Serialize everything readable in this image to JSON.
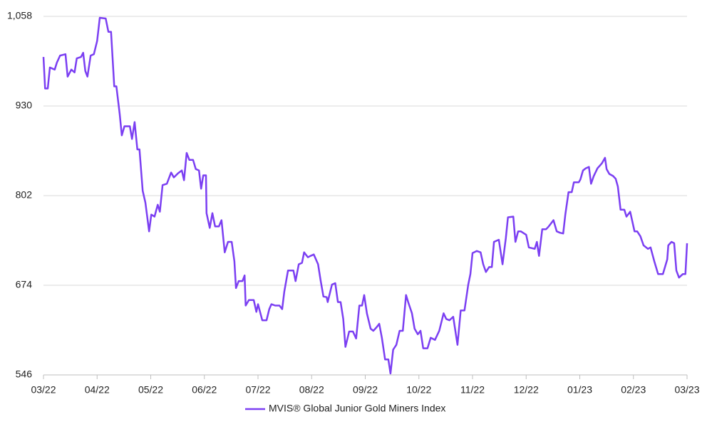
{
  "chart_data": {
    "type": "line",
    "x": [
      0,
      0.03,
      0.08,
      0.12,
      0.21,
      0.25,
      0.31,
      0.41,
      0.45,
      0.52,
      0.58,
      0.62,
      0.7,
      0.74,
      0.78,
      0.82,
      0.88,
      0.94,
      1.0,
      1.05,
      1.16,
      1.21,
      1.26,
      1.32,
      1.36,
      1.42,
      1.46,
      1.51,
      1.61,
      1.65,
      1.7,
      1.75,
      1.79,
      1.85,
      1.9,
      1.97,
      2.01,
      2.07,
      2.13,
      2.17,
      2.22,
      2.3,
      2.38,
      2.43,
      2.51,
      2.58,
      2.62,
      2.67,
      2.72,
      2.79,
      2.84,
      2.9,
      2.94,
      2.98,
      3.03,
      3.04,
      3.1,
      3.15,
      3.2,
      3.27,
      3.32,
      3.38,
      3.44,
      3.51,
      3.56,
      3.59,
      3.64,
      3.71,
      3.75,
      3.77,
      3.83,
      3.92,
      3.97,
      4.0,
      4.08,
      4.16,
      4.21,
      4.25,
      4.32,
      4.4,
      4.45,
      4.49,
      4.56,
      4.66,
      4.7,
      4.76,
      4.82,
      4.86,
      4.93,
      4.98,
      5.04,
      5.12,
      5.17,
      5.22,
      5.28,
      5.3,
      5.38,
      5.44,
      5.49,
      5.54,
      5.59,
      5.63,
      5.7,
      5.77,
      5.83,
      5.89,
      5.94,
      5.98,
      6.03,
      6.1,
      6.15,
      6.21,
      6.26,
      6.31,
      6.37,
      6.43,
      6.47,
      6.52,
      6.58,
      6.64,
      6.7,
      6.76,
      6.8,
      6.87,
      6.92,
      6.98,
      7.03,
      7.08,
      7.16,
      7.22,
      7.3,
      7.38,
      7.46,
      7.51,
      7.57,
      7.64,
      7.68,
      7.72,
      7.78,
      7.85,
      7.92,
      7.96,
      8.0,
      8.08,
      8.15,
      8.2,
      8.25,
      8.31,
      8.36,
      8.4,
      8.49,
      8.56,
      8.62,
      8.66,
      8.76,
      8.8,
      8.85,
      8.9,
      9.0,
      9.05,
      9.16,
      9.2,
      9.24,
      9.3,
      9.37,
      9.42,
      9.51,
      9.57,
      9.63,
      9.69,
      9.73,
      9.79,
      9.85,
      9.89,
      9.98,
      10.01,
      10.06,
      10.11,
      10.17,
      10.21,
      10.26,
      10.33,
      10.41,
      10.47,
      10.5,
      10.55,
      10.62,
      10.67,
      10.71,
      10.76,
      10.83,
      10.87,
      10.94,
      11.02,
      11.07,
      11.13,
      11.19,
      11.27,
      11.32,
      11.39,
      11.46,
      11.55,
      11.63,
      11.65,
      11.71,
      11.76,
      11.8,
      11.85,
      11.92,
      11.97,
      12.0
    ],
    "series": [
      {
        "name": "MVIS® Global Junior Gold Miners Index",
        "color": "#7b3ff2",
        "values": [
          1000,
          955,
          955,
          985,
          982,
          992,
          1002,
          1004,
          972,
          982,
          978,
          998,
          1000,
          1006,
          980,
          972,
          1002,
          1004,
          1023,
          1056,
          1055,
          1036,
          1036,
          958,
          958,
          919,
          888,
          901,
          901,
          883,
          907,
          868,
          868,
          809,
          792,
          751,
          775,
          772,
          789,
          779,
          817,
          819,
          835,
          828,
          834,
          838,
          824,
          863,
          853,
          853,
          840,
          838,
          812,
          831,
          831,
          777,
          756,
          777,
          758,
          758,
          767,
          721,
          736,
          736,
          708,
          670,
          680,
          680,
          688,
          645,
          653,
          653,
          636,
          647,
          624,
          624,
          640,
          647,
          645,
          645,
          640,
          665,
          695,
          695,
          680,
          704,
          706,
          721,
          714,
          716,
          718,
          704,
          680,
          658,
          657,
          650,
          675,
          677,
          650,
          650,
          626,
          586,
          608,
          608,
          598,
          645,
          645,
          660,
          634,
          612,
          609,
          614,
          619,
          599,
          568,
          568,
          548,
          582,
          589,
          609,
          609,
          660,
          650,
          634,
          612,
          604,
          609,
          584,
          584,
          599,
          596,
          609,
          634,
          626,
          624,
          629,
          609,
          589,
          638,
          638,
          675,
          690,
          720,
          723,
          721,
          704,
          693,
          700,
          700,
          736,
          739,
          704,
          741,
          771,
          772,
          736,
          751,
          751,
          746,
          728,
          726,
          736,
          716,
          754,
          754,
          758,
          767,
          751,
          749,
          748,
          775,
          807,
          807,
          821,
          821,
          825,
          838,
          841,
          843,
          819,
          830,
          841,
          848,
          856,
          840,
          833,
          830,
          826,
          815,
          782,
          782,
          772,
          779,
          751,
          751,
          744,
          731,
          726,
          728,
          708,
          690,
          690,
          711,
          731,
          736,
          734,
          695,
          685,
          690,
          690,
          734
        ]
      }
    ],
    "xlim": [
      0,
      12
    ],
    "xticks": [
      {
        "value": 0,
        "label": "03/22"
      },
      {
        "value": 1,
        "label": "04/22"
      },
      {
        "value": 2,
        "label": "05/22"
      },
      {
        "value": 3,
        "label": "06/22"
      },
      {
        "value": 4,
        "label": "07/22"
      },
      {
        "value": 5,
        "label": "08/22"
      },
      {
        "value": 6,
        "label": "09/22"
      },
      {
        "value": 7,
        "label": "10/22"
      },
      {
        "value": 8,
        "label": "11/22"
      },
      {
        "value": 9,
        "label": "12/22"
      },
      {
        "value": 10,
        "label": "01/23"
      },
      {
        "value": 11,
        "label": "02/23"
      },
      {
        "value": 12,
        "label": "03/23"
      }
    ],
    "ylim": [
      546,
      1058
    ],
    "yticks": [
      546,
      674,
      802,
      930,
      {
        "value": 1058,
        "label": "1,058"
      }
    ],
    "grid": true
  }
}
